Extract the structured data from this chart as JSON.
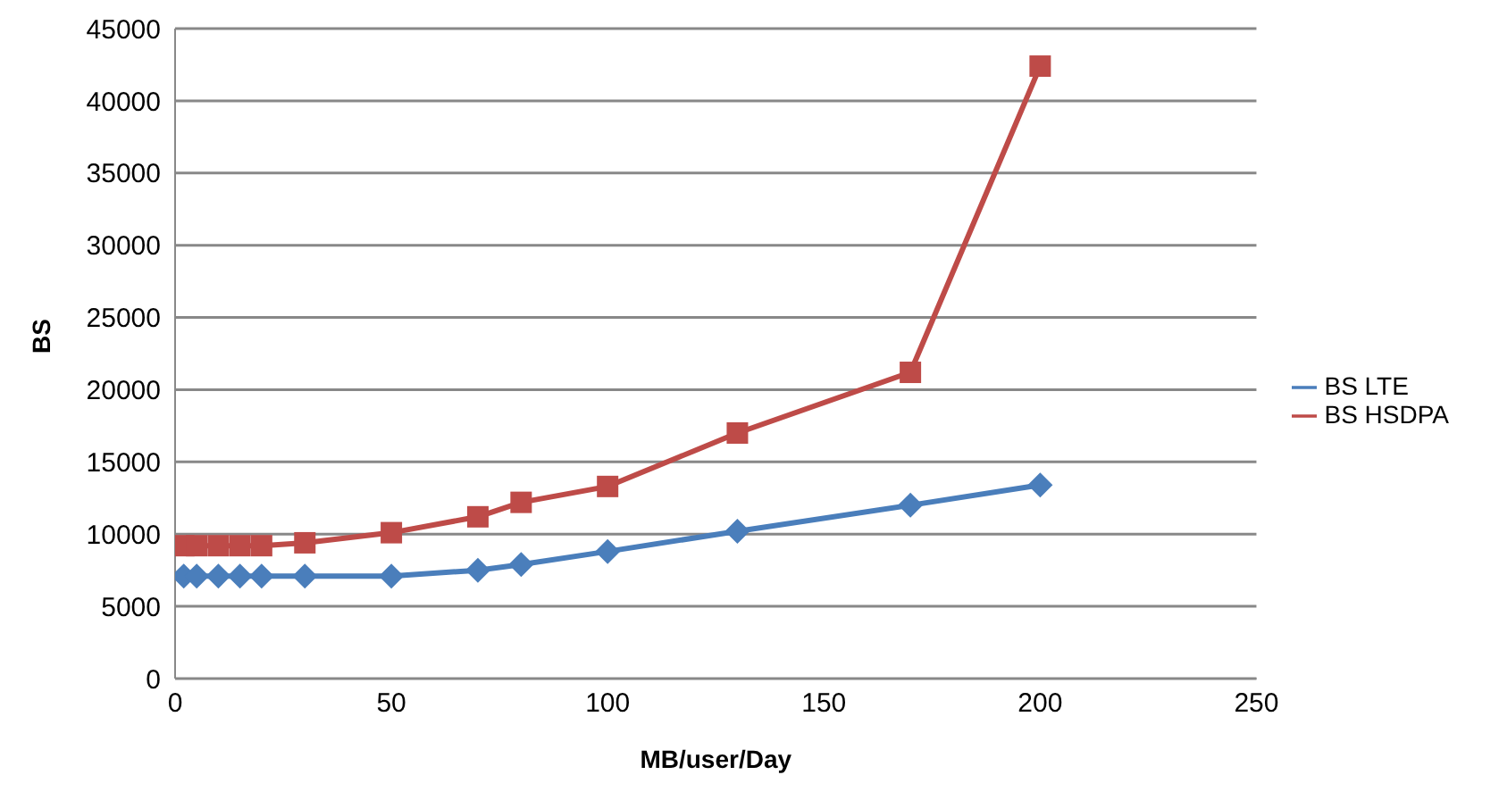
{
  "chart_data": {
    "type": "line",
    "xlabel": "MB/user/Day",
    "ylabel": "BS",
    "x": [
      2,
      5,
      10,
      15,
      20,
      30,
      50,
      70,
      80,
      100,
      130,
      170,
      200
    ],
    "series": [
      {
        "name": "BS LTE",
        "color": "#4a7ebb",
        "marker": "diamond",
        "values": [
          7100,
          7100,
          7100,
          7100,
          7100,
          7100,
          7100,
          7500,
          7900,
          8800,
          10200,
          12000,
          13400
        ]
      },
      {
        "name": "BS HSDPA",
        "color": "#be4b48",
        "marker": "square",
        "values": [
          9200,
          9200,
          9200,
          9200,
          9200,
          9400,
          10100,
          11200,
          12200,
          13300,
          17000,
          21200,
          42400
        ]
      }
    ],
    "xlim": [
      0,
      250
    ],
    "xticks": [
      0,
      50,
      100,
      150,
      200,
      250
    ],
    "ylim": [
      0,
      45000
    ],
    "yticks": [
      0,
      5000,
      10000,
      15000,
      20000,
      25000,
      30000,
      35000,
      40000,
      45000
    ],
    "grid": "y",
    "legend": "right"
  }
}
